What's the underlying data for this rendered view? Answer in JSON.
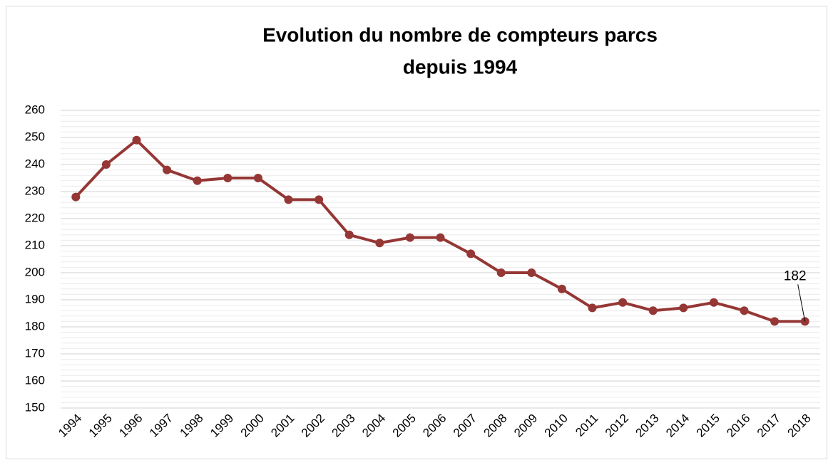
{
  "chart_data": {
    "type": "line",
    "title": [
      "Evolution du nombre de compteurs parcs",
      "depuis 1994"
    ],
    "categories": [
      "1994",
      "1995",
      "1996",
      "1997",
      "1998",
      "1999",
      "2000",
      "2001",
      "2002",
      "2003",
      "2004",
      "2005",
      "2006",
      "2007",
      "2008",
      "2009",
      "2010",
      "2011",
      "2012",
      "2013",
      "2014",
      "2015",
      "2016",
      "2017",
      "2018"
    ],
    "values": [
      228,
      240,
      249,
      238,
      234,
      235,
      235,
      227,
      227,
      214,
      211,
      213,
      213,
      207,
      200,
      200,
      194,
      187,
      189,
      186,
      187,
      189,
      186,
      182,
      182
    ],
    "color": "#953735",
    "ylim": [
      150,
      260
    ],
    "yticks": [
      150,
      160,
      170,
      180,
      190,
      200,
      210,
      220,
      230,
      240,
      250,
      260
    ],
    "grid": true,
    "minor_grid": true,
    "labeled_point": 24
  }
}
